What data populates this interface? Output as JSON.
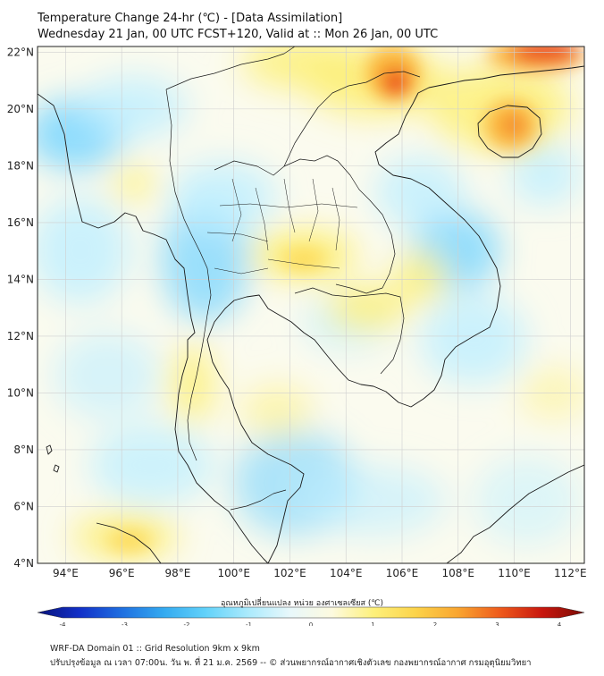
{
  "header": {
    "title": "Temperature Change 24-hr (℃) - [Data Assimilation]",
    "subtitle": "Wednesday 21 Jan, 00 UTC FCST+120, Valid at :: Mon 26 Jan, 00 UTC"
  },
  "map": {
    "lon_labels": [
      "94°E",
      "96°E",
      "98°E",
      "100°E",
      "102°E",
      "104°E",
      "106°E",
      "108°E",
      "110°E",
      "112°E"
    ],
    "lat_labels": [
      "22°N",
      "20°N",
      "18°N",
      "16°N",
      "14°N",
      "12°N",
      "10°N",
      "8°N",
      "6°N",
      "4°N"
    ],
    "lon_values": [
      94,
      96,
      98,
      100,
      102,
      104,
      106,
      108,
      110,
      112
    ],
    "lat_values": [
      22,
      20,
      18,
      16,
      14,
      12,
      10,
      8,
      6,
      4
    ],
    "lon_range": [
      93,
      112.5
    ],
    "lat_range": [
      4,
      22.2
    ],
    "colors": {
      "warm_strong": "#e82a10",
      "warm_mid": "#fbb237",
      "warm_light": "#fdf07a",
      "neutral": "#fbfbef",
      "cool_light": "#bfefff",
      "cool_mid": "#79d6ff",
      "coastline": "#1a1a1a",
      "grid": "#cfcfcf"
    }
  },
  "colorbar": {
    "label": "อุณหภูมิเปลี่ยนแปลง หน่วย องศาเซลเซียส (℃)",
    "min": -4,
    "max": 4,
    "ticks": [
      "-4",
      "-3",
      "-2",
      "-1",
      "0",
      "1",
      "2",
      "3",
      "4"
    ],
    "tick_values": [
      -4,
      -3,
      -2,
      -1,
      0,
      1,
      2,
      3,
      4
    ],
    "stops": [
      "#08127a",
      "#1230c8",
      "#1f6fe0",
      "#34aaf0",
      "#62d2fa",
      "#aaeafc",
      "#e8f8fb",
      "#fdfadf",
      "#fdf07a",
      "#fcd34a",
      "#f9a530",
      "#ee5a1c",
      "#c8170e",
      "#7a0b05"
    ]
  },
  "footer": {
    "line1": "WRF-DA Domain 01 :: Grid Resolution 9km x 9km",
    "line2": "ปรับปรุงข้อมูล ณ เวลา 07:00น. วัน พ. ที่ 21 ม.ค. 2569 -- © ส่วนพยากรณ์อากาศเชิงตัวเลข กองพยากรณ์อากาศ กรมอุตุนิยมวิทยา"
  }
}
